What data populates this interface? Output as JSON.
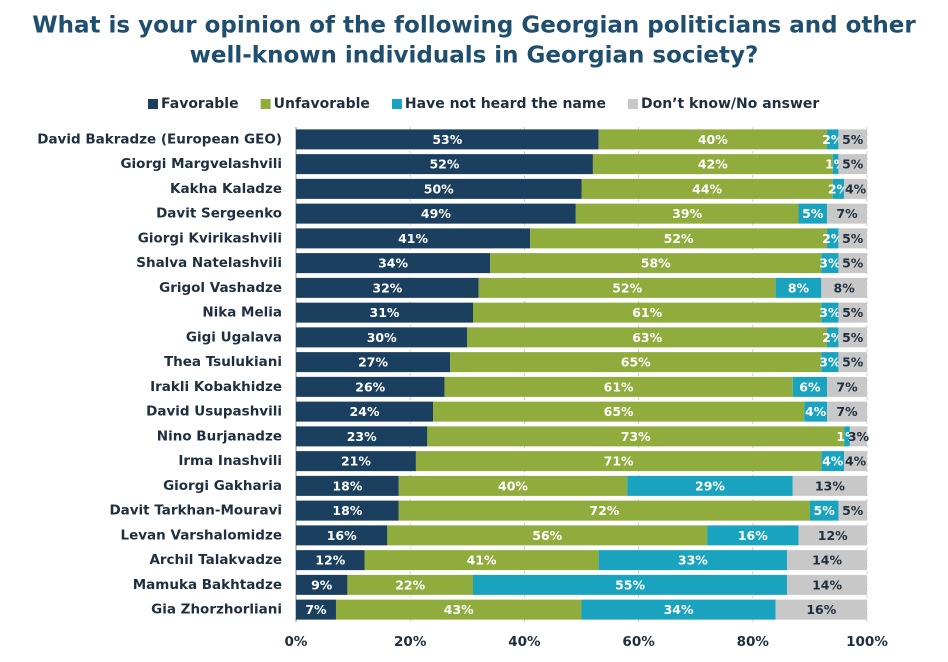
{
  "chart_data": {
    "type": "stacked-bar-horizontal",
    "title": [
      "What is your opinion of the following Georgian politicians and other",
      "well-known individuals in Georgian society?"
    ],
    "categories": [
      "David Bakradze (European GEO)",
      "Giorgi Margvelashvili",
      "Kakha Kaladze",
      "Davit Sergeenko",
      "Giorgi Kvirikashvili",
      "Shalva Natelashvili",
      "Grigol Vashadze",
      "Nika Melia",
      "Gigi Ugalava",
      "Thea Tsulukiani",
      "Irakli Kobakhidze",
      "David Usupashvili",
      "Nino Burjanadze",
      "Irma Inashvili",
      "Giorgi Gakharia",
      "Davit Tarkhan-Mouravi",
      "Levan Varshalomidze",
      "Archil Talakvadze",
      "Mamuka Bakhtadze",
      "Gia Zhorzhorliani"
    ],
    "series": [
      {
        "name": "Favorable",
        "color": "#1b3f5e",
        "label_color": "#ffffff",
        "values": [
          53,
          52,
          50,
          49,
          41,
          34,
          32,
          31,
          30,
          27,
          26,
          24,
          23,
          21,
          18,
          18,
          16,
          12,
          9,
          7
        ],
        "value_labels": [
          "53%",
          "52%",
          "50%",
          "49%",
          "41%",
          "34%",
          "32%",
          "31%",
          "30%",
          "27%",
          "26%",
          "24%",
          "23%",
          "21%",
          "18%",
          "18%",
          "16%",
          "12%",
          "9%",
          "7%"
        ]
      },
      {
        "name": "Unfavorable",
        "color": "#8fac3c",
        "label_color": "#ffffff",
        "values": [
          40,
          42,
          44,
          39,
          52,
          58,
          52,
          61,
          63,
          65,
          61,
          65,
          73,
          71,
          40,
          72,
          56,
          41,
          22,
          43
        ],
        "value_labels": [
          "40%",
          "42%",
          "44%",
          "39%",
          "52%",
          "58%",
          "52%",
          "61%",
          "63%",
          "65%",
          "61%",
          "65%",
          "73%",
          "71%",
          "40%",
          "72%",
          "56%",
          "41%",
          "22%",
          "43%"
        ]
      },
      {
        "name": "Have not heard the name",
        "color": "#1aa3bf",
        "label_color": "#ffffff",
        "values": [
          2,
          1,
          2,
          5,
          2,
          3,
          8,
          3,
          2,
          3,
          6,
          4,
          1,
          4,
          29,
          5,
          16,
          33,
          55,
          34
        ],
        "value_labels": [
          "2%",
          "1%",
          "2%",
          "5%",
          "2%",
          "3%",
          "8%",
          "3%",
          "2%",
          "3%",
          "6%",
          "4%",
          "1%",
          "4%",
          "29%",
          "5%",
          "16%",
          "33%",
          "55%",
          "34%"
        ]
      },
      {
        "name": "Don’t know/No answer",
        "color": "#c8c8c8",
        "label_color": "#1f2f3f",
        "values": [
          5,
          5,
          4,
          7,
          5,
          5,
          8,
          5,
          5,
          5,
          7,
          7,
          3,
          4,
          13,
          5,
          12,
          14,
          14,
          16
        ],
        "value_labels": [
          "5%",
          "5%",
          "4%",
          "7%",
          "5%",
          "5%",
          "8%",
          "5%",
          "5%",
          "5%",
          "7%",
          "7%",
          "3%",
          "4%",
          "13%",
          "5%",
          "12%",
          "14%",
          "14%",
          "16%"
        ]
      }
    ],
    "xlim": [
      0,
      100
    ],
    "xticks": [
      {
        "value": 0,
        "label": "0%"
      },
      {
        "value": 20,
        "label": "20%"
      },
      {
        "value": 40,
        "label": "40%"
      },
      {
        "value": 60,
        "label": "60%"
      },
      {
        "value": 80,
        "label": "80%"
      },
      {
        "value": 100,
        "label": "100%"
      }
    ],
    "grid": true,
    "legend": "top"
  }
}
